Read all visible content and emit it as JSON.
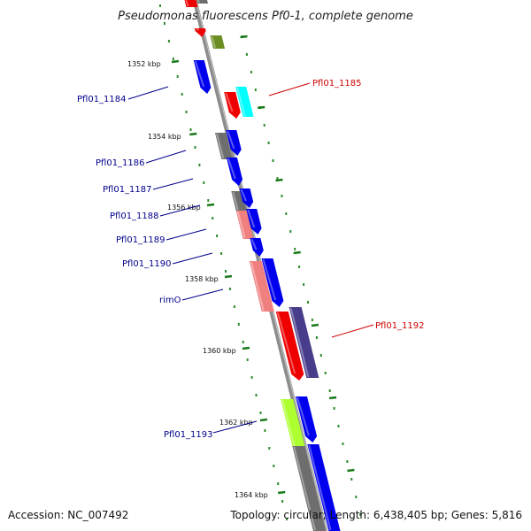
{
  "title": "Pseudomonas fluorescens Pf0-1, complete genome",
  "footer": {
    "accession": "Accession: NC_007492",
    "summary": "Topology: circular; Length: 6,438,405 bp; Genes: 5,816"
  },
  "ticks": [
    "1352 kbp",
    "1354 kbp",
    "1356 kbp",
    "1358 kbp",
    "1360 kbp",
    "1362 kbp",
    "1364 kbp"
  ],
  "gene_labels": [
    {
      "text": "Pfl01_1184",
      "color": "#00008b"
    },
    {
      "text": "Pfl01_1185",
      "color": "#cc0000"
    },
    {
      "text": "Pfl01_1186",
      "color": "#00008b"
    },
    {
      "text": "Pfl01_1187",
      "color": "#00008b"
    },
    {
      "text": "Pfl01_1188",
      "color": "#00008b"
    },
    {
      "text": "Pfl01_1189",
      "color": "#00008b"
    },
    {
      "text": "Pfl01_1190",
      "color": "#00008b"
    },
    {
      "text": "rimO",
      "color": "#00008b"
    },
    {
      "text": "Pfl01_1192",
      "color": "#cc0000"
    },
    {
      "text": "Pfl01_1193",
      "color": "#00008b"
    }
  ],
  "colors": {
    "blue": "#0000ee",
    "red": "#ee0000",
    "gray": "#6e6e6e",
    "olive": "#6b8e23",
    "cyan": "#00ffff",
    "pink": "#f08080",
    "purple": "#483d8b",
    "lime": "#adff2f",
    "backbone": "#8c8c8c",
    "dots": "#2e8b2e"
  }
}
